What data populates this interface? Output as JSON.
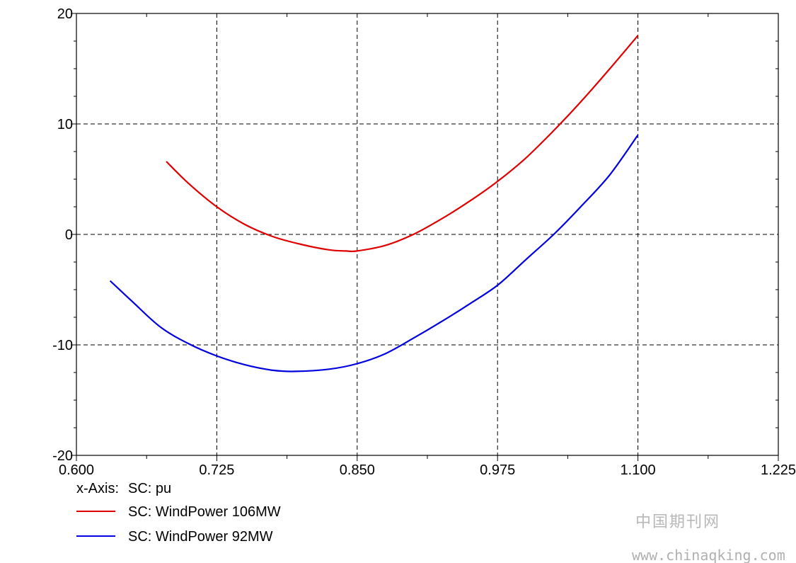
{
  "chart_data": {
    "type": "line",
    "x_axis_label": "x-Axis:",
    "x_axis_quantity": "SC: pu",
    "xlim": [
      0.6,
      1.225
    ],
    "ylim": [
      -20,
      20
    ],
    "x_ticks": [
      "0.600",
      "0.725",
      "0.850",
      "0.975",
      "1.100",
      "1.225"
    ],
    "y_ticks": [
      "20",
      "10",
      "0",
      "-10",
      "-20"
    ],
    "grid": true,
    "legend_placement": "bottom-left, below plot",
    "series": [
      {
        "name": "SC: WindPower 106MW",
        "color": "#e00000",
        "x": [
          0.68,
          0.7,
          0.725,
          0.75,
          0.775,
          0.8,
          0.825,
          0.84,
          0.85,
          0.875,
          0.9,
          0.925,
          0.95,
          0.975,
          1.0,
          1.025,
          1.05,
          1.075,
          1.1
        ],
        "y": [
          6.6,
          4.6,
          2.5,
          0.9,
          -0.2,
          -0.9,
          -1.4,
          -1.5,
          -1.5,
          -1.0,
          0.0,
          1.4,
          3.0,
          4.8,
          6.9,
          9.4,
          12.1,
          15.0,
          18.0
        ]
      },
      {
        "name": "SC: WindPower 92MW",
        "color": "#0000e0",
        "x": [
          0.63,
          0.65,
          0.675,
          0.7,
          0.725,
          0.75,
          0.775,
          0.795,
          0.825,
          0.85,
          0.875,
          0.9,
          0.925,
          0.95,
          0.975,
          1.0,
          1.025,
          1.05,
          1.075,
          1.1
        ],
        "y": [
          -4.2,
          -6.1,
          -8.4,
          -9.9,
          -11.0,
          -11.8,
          -12.3,
          -12.4,
          -12.2,
          -11.7,
          -10.8,
          -9.4,
          -7.9,
          -6.3,
          -4.6,
          -2.3,
          0.0,
          2.6,
          5.4,
          9.0
        ]
      }
    ]
  },
  "watermark": {
    "cn_text": "中国期刊网",
    "url_text": "www.chinaqking.com"
  }
}
